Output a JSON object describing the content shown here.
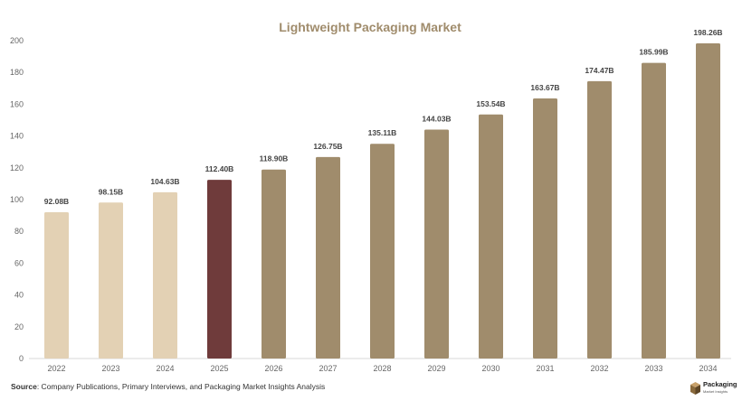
{
  "chart_data": {
    "type": "bar",
    "title": "Lightweight Packaging Market",
    "categories": [
      "2022",
      "2023",
      "2024",
      "2025",
      "2026",
      "2027",
      "2028",
      "2029",
      "2030",
      "2031",
      "2032",
      "2033",
      "2034"
    ],
    "values": [
      92.08,
      98.15,
      104.63,
      112.4,
      118.9,
      126.75,
      135.11,
      144.03,
      153.54,
      163.67,
      174.47,
      185.99,
      198.26
    ],
    "data_labels": [
      "92.08B",
      "98.15B",
      "104.63B",
      "112.40B",
      "118.90B",
      "126.75B",
      "135.11B",
      "144.03B",
      "153.54B",
      "163.67B",
      "174.47B",
      "185.99B",
      "198.26B"
    ],
    "ylim": [
      0,
      200
    ],
    "yticks": [
      0,
      20,
      40,
      60,
      80,
      100,
      120,
      140,
      160,
      180,
      200
    ],
    "grid": false,
    "colors": {
      "historical": "#e3d1b4",
      "current": "#6f3b3b",
      "forecast": "#a08c6c",
      "title": "#a08c6c"
    },
    "bar_color_groups": [
      "historical",
      "historical",
      "historical",
      "current",
      "forecast",
      "forecast",
      "forecast",
      "forecast",
      "forecast",
      "forecast",
      "forecast",
      "forecast",
      "forecast"
    ]
  },
  "footer": {
    "source_label": "Source",
    "source_text": ": Company Publications, Primary Interviews, and Packaging Market Insights Analysis"
  },
  "logo": {
    "name": "Packaging",
    "tagline": "Market Insights",
    "icon": "package-box-icon",
    "color": "#8a6a3c"
  }
}
